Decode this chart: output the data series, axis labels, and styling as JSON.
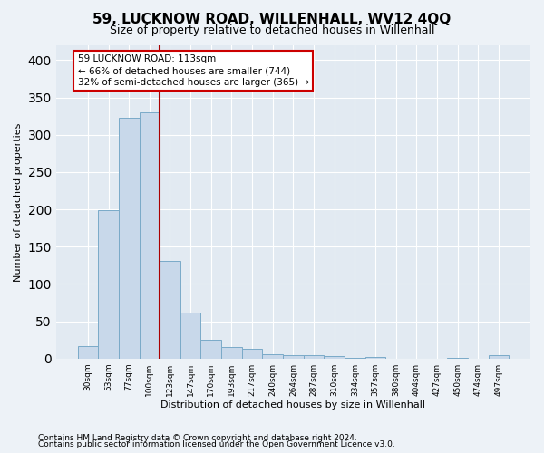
{
  "title": "59, LUCKNOW ROAD, WILLENHALL, WV12 4QQ",
  "subtitle": "Size of property relative to detached houses in Willenhall",
  "xlabel": "Distribution of detached houses by size in Willenhall",
  "ylabel": "Number of detached properties",
  "bar_color": "#c8d8ea",
  "bar_edge_color": "#7aaac8",
  "vline_color": "#aa0000",
  "annotation_line1": "59 LUCKNOW ROAD: 113sqm",
  "annotation_line2": "← 66% of detached houses are smaller (744)",
  "annotation_line3": "32% of semi-detached houses are larger (365) →",
  "annotation_box_color": "white",
  "annotation_box_edge": "#cc0000",
  "categories": [
    "30sqm",
    "53sqm",
    "77sqm",
    "100sqm",
    "123sqm",
    "147sqm",
    "170sqm",
    "193sqm",
    "217sqm",
    "240sqm",
    "264sqm",
    "287sqm",
    "310sqm",
    "334sqm",
    "357sqm",
    "380sqm",
    "404sqm",
    "427sqm",
    "450sqm",
    "474sqm",
    "497sqm"
  ],
  "values": [
    17,
    199,
    323,
    330,
    131,
    61,
    25,
    15,
    13,
    6,
    4,
    4,
    3,
    1,
    2,
    0,
    0,
    0,
    1,
    0,
    4
  ],
  "ylim": [
    0,
    420
  ],
  "yticks": [
    0,
    50,
    100,
    150,
    200,
    250,
    300,
    350,
    400
  ],
  "footer1": "Contains HM Land Registry data © Crown copyright and database right 2024.",
  "footer2": "Contains public sector information licensed under the Open Government Licence v3.0.",
  "fig_bg_color": "#edf2f7",
  "plot_bg_color": "#e2eaf2",
  "grid_color": "#d0d8e4"
}
